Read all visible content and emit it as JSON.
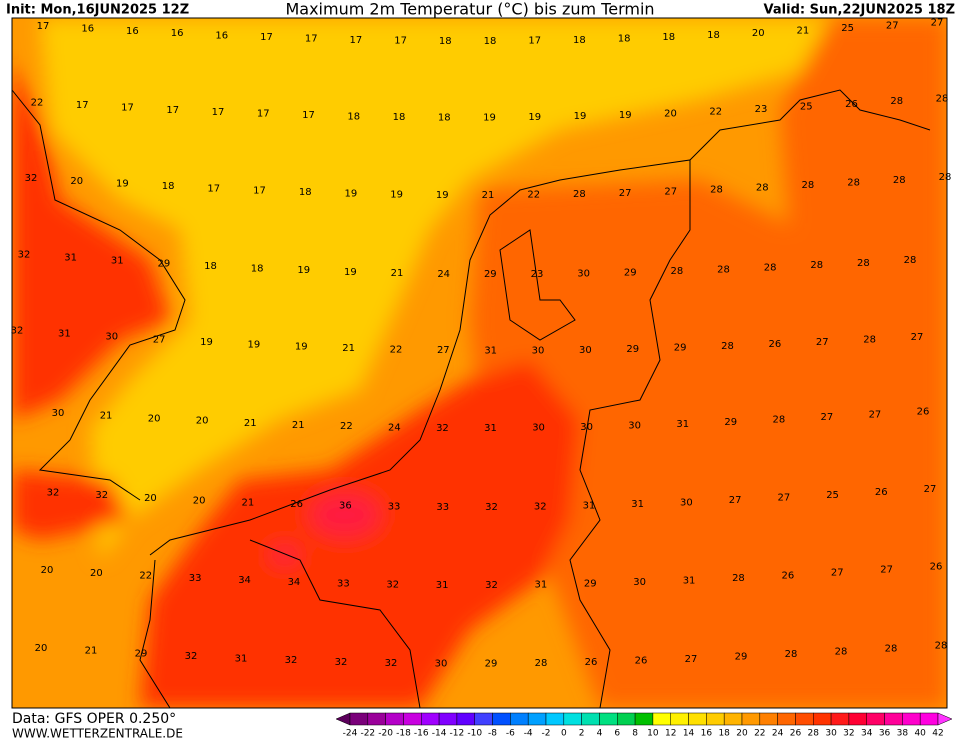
{
  "header": {
    "init": "Init: Mon,16JUN2025 12Z",
    "title": "Maximum 2m Temperatur (°C) bis zum Termin",
    "valid": "Valid: Sun,22JUN2025 18Z"
  },
  "footer": {
    "data_source": "Data: GFS OPER 0.250°",
    "website": "WWW.WETTERZENTRALE.DE"
  },
  "temperature_labels": [
    [
      17,
      16,
      16,
      16,
      16,
      17,
      17,
      17,
      17,
      18,
      18,
      17,
      18,
      18,
      18,
      18,
      20,
      21,
      25,
      27,
      27
    ],
    [
      22,
      17,
      17,
      17,
      17,
      17,
      17,
      18,
      18,
      18,
      19,
      19,
      19,
      19,
      20,
      22,
      23,
      25,
      26,
      28,
      28
    ],
    [
      32,
      20,
      19,
      18,
      17,
      17,
      18,
      19,
      19,
      19,
      21,
      22,
      28,
      27,
      27,
      28,
      28,
      28,
      28,
      28,
      28
    ],
    [
      32,
      31,
      31,
      29,
      18,
      18,
      19,
      19,
      21,
      24,
      29,
      23,
      30,
      29,
      28,
      28,
      28,
      28,
      28,
      28
    ],
    [
      32,
      31,
      30,
      27,
      19,
      19,
      19,
      21,
      22,
      27,
      31,
      30,
      30,
      29,
      29,
      28,
      26,
      27,
      28,
      27
    ],
    [
      30,
      21,
      20,
      20,
      21,
      21,
      22,
      24,
      32,
      31,
      30,
      30,
      30,
      31,
      29,
      28,
      27,
      27,
      26
    ],
    [
      32,
      32,
      20,
      20,
      21,
      26,
      36,
      33,
      33,
      32,
      32,
      31,
      31,
      30,
      27,
      27,
      25,
      26,
      27
    ],
    [
      20,
      20,
      22,
      33,
      34,
      34,
      33,
      32,
      31,
      32,
      31,
      29,
      30,
      31,
      28,
      26,
      27,
      27,
      26
    ],
    [
      20,
      21,
      29,
      32,
      31,
      32,
      32,
      32,
      30,
      29,
      28,
      26,
      26,
      27,
      29,
      28,
      28,
      28,
      28
    ]
  ],
  "colorbar": {
    "ticks": [
      -24,
      -22,
      -20,
      -18,
      -16,
      -14,
      -12,
      -10,
      -8,
      -6,
      -4,
      -2,
      0,
      2,
      4,
      6,
      8,
      10,
      12,
      14,
      16,
      18,
      20,
      22,
      24,
      26,
      28,
      30,
      32,
      34,
      36,
      38,
      40,
      42
    ],
    "colors": [
      "#5c005c",
      "#7a007a",
      "#9a009a",
      "#b400c8",
      "#c800e0",
      "#a000ff",
      "#8000ff",
      "#6000ff",
      "#4040ff",
      "#0050ff",
      "#0080ff",
      "#00a0ff",
      "#00c8ff",
      "#00e0e0",
      "#00e0b0",
      "#00e080",
      "#00d050",
      "#00c000",
      "#ffff00",
      "#fff000",
      "#ffe000",
      "#ffcc00",
      "#ffb400",
      "#ff9900",
      "#ff8000",
      "#ff6600",
      "#ff4d00",
      "#ff3300",
      "#ff1a1a",
      "#ff0033",
      "#ff0066",
      "#ff0099",
      "#ff00cc",
      "#ff00e0",
      "#ff33ff"
    ]
  }
}
